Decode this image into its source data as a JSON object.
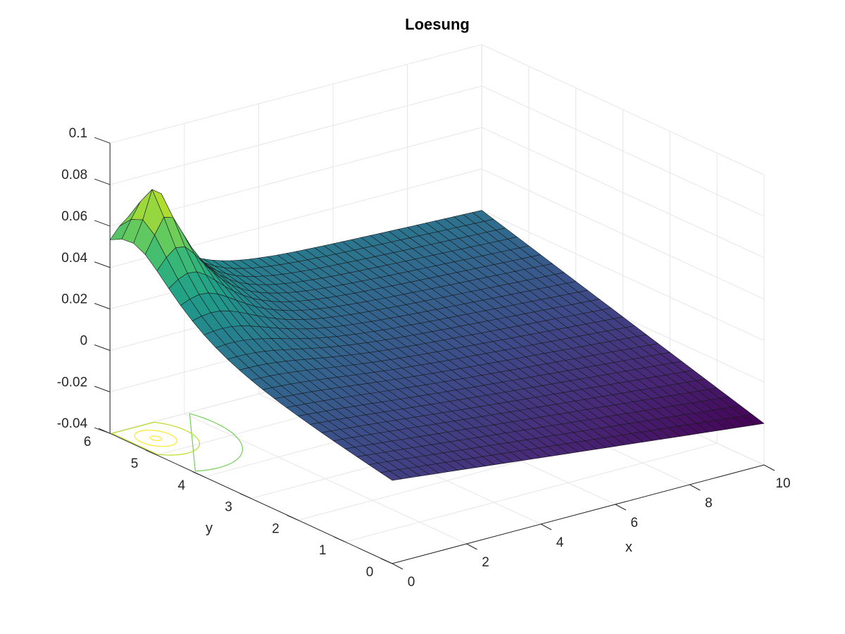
{
  "chart_data": {
    "type": "surface",
    "title": "Loesung",
    "xlabel": "x",
    "ylabel": "y",
    "zlabel": "",
    "xlim": [
      0,
      10
    ],
    "ylim": [
      0,
      6
    ],
    "zlim": [
      -0.04,
      0.1
    ],
    "x_ticks": [
      "0",
      "2",
      "4",
      "6",
      "8",
      "10"
    ],
    "y_ticks": [
      "0",
      "1",
      "2",
      "3",
      "4",
      "5",
      "6"
    ],
    "z_ticks": [
      "-0.04",
      "-0.02",
      "0",
      "0.02",
      "0.04",
      "0.06",
      "0.08",
      "0.1"
    ],
    "x_tick_values": [
      0,
      2,
      4,
      6,
      8,
      10
    ],
    "y_tick_values": [
      0,
      1,
      2,
      3,
      4,
      5,
      6
    ],
    "z_tick_values": [
      -0.04,
      -0.02,
      0,
      0.02,
      0.04,
      0.06,
      0.08,
      0.1
    ],
    "grid": true,
    "colormap": "viridis",
    "surface": {
      "x_range": [
        0,
        10
      ],
      "y_range": [
        0,
        6
      ],
      "peak": {
        "x": 0.6,
        "y": 5.5,
        "z": 0.087
      },
      "corner_values": {
        "x0_y0": 0.0,
        "x0_y6": 0.027,
        "x10_y0": -0.02,
        "x10_y6": 0.02
      }
    },
    "contour": {
      "plane_z": -0.04,
      "center": {
        "x": 0.6,
        "y": 5.5
      },
      "levels": [
        0.005,
        0.02,
        0.035,
        0.05,
        0.065,
        0.08
      ]
    }
  },
  "colors": {
    "grid": "#e6e6e6",
    "axis": "#262626",
    "mesh_edge": "#1a1a1a",
    "background": "#ffffff"
  }
}
